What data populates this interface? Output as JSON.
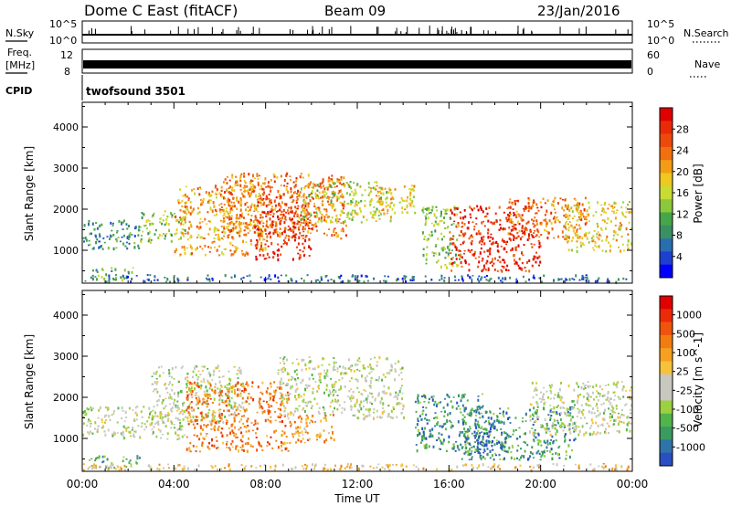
{
  "header": {
    "site": "Dome C East (fitACF)",
    "beam": "Beam 09",
    "date": "23/Jan/2016"
  },
  "status_panels": {
    "nsky_label": "N.Sky",
    "nsky_ticks": [
      "10^5",
      "10^0"
    ],
    "nsearch_label": "N.Search",
    "nsearch_ticks": [
      "10^5",
      "10^0"
    ],
    "freq_label_1": "Freq.",
    "freq_label_2": "[MHz]",
    "freq_ticks": [
      "12",
      "8"
    ],
    "nave_label": "Nave",
    "nave_ticks": [
      "60",
      "0"
    ],
    "cpid_label": "CPID",
    "cpid_value": "twofsound 3501"
  },
  "chart_data": [
    {
      "type": "heatmap",
      "name": "power-panel",
      "ylabel": "Slant Range [km]",
      "yticks": [
        "1000",
        "2000",
        "3000",
        "4000"
      ],
      "ylim": [
        200,
        4600
      ],
      "xlim": [
        0,
        24
      ],
      "colorbar": {
        "label": "Power [dB]",
        "ticks": [
          "4",
          "8",
          "12",
          "16",
          "20",
          "24",
          "28"
        ],
        "colors": [
          "#0000ff",
          "#1f3fd0",
          "#2a6db0",
          "#3a9060",
          "#46a64a",
          "#8cc83c",
          "#c8dc34",
          "#f0c820",
          "#f29d15",
          "#f07010",
          "#ec4a0c",
          "#e82a08",
          "#e00000"
        ]
      },
      "regions": [
        {
          "t0": 0.0,
          "t1": 2.5,
          "r0": 1050,
          "r1": 1750,
          "level": 3
        },
        {
          "t0": 0.3,
          "t1": 2.2,
          "r0": 300,
          "r1": 600,
          "level": 4
        },
        {
          "t0": 2.5,
          "t1": 4.5,
          "r0": 1200,
          "r1": 2000,
          "level": 5
        },
        {
          "t0": 4.0,
          "t1": 8.0,
          "r0": 900,
          "r1": 2600,
          "level": 8
        },
        {
          "t0": 6.0,
          "t1": 11.5,
          "r0": 1300,
          "r1": 2900,
          "level": 9
        },
        {
          "t0": 7.5,
          "t1": 10.0,
          "r0": 800,
          "r1": 2400,
          "level": 11
        },
        {
          "t0": 9.5,
          "t1": 13.5,
          "r0": 1700,
          "r1": 2700,
          "level": 6
        },
        {
          "t0": 12.5,
          "t1": 14.5,
          "r0": 1900,
          "r1": 2600,
          "level": 7
        },
        {
          "t0": 14.8,
          "t1": 16.5,
          "r0": 600,
          "r1": 2100,
          "level": 5
        },
        {
          "t0": 16.0,
          "t1": 20.0,
          "r0": 500,
          "r1": 2100,
          "level": 11
        },
        {
          "t0": 18.5,
          "t1": 22.0,
          "r0": 1300,
          "r1": 2300,
          "level": 9
        },
        {
          "t0": 21.0,
          "t1": 24.0,
          "r0": 1000,
          "r1": 2200,
          "level": 7
        },
        {
          "t0": 0.0,
          "t1": 24.0,
          "r0": 250,
          "r1": 420,
          "level": 2
        }
      ]
    },
    {
      "type": "heatmap",
      "name": "velocity-panel",
      "ylabel": "Slant Range [km]",
      "yticks": [
        "1000",
        "2000",
        "3000",
        "4000"
      ],
      "ylim": [
        200,
        4600
      ],
      "xlabel": "Time UT",
      "xticks": [
        "00:00",
        "04:00",
        "08:00",
        "12:00",
        "16:00",
        "20:00",
        "00:00"
      ],
      "xlim": [
        0,
        24
      ],
      "colorbar": {
        "label": "Velocity [m s^-1]",
        "ticks": [
          "1000",
          "500",
          "100",
          "25",
          "-25",
          "-100",
          "-500",
          "-1000"
        ],
        "colors": [
          "#2a4fc0",
          "#2f74a8",
          "#3a9a60",
          "#52b44a",
          "#9cd040",
          "#c8c8c0",
          "#c8c8c0",
          "#f6c23c",
          "#f5a020",
          "#f27c10",
          "#ef540c",
          "#ea2a08",
          "#e00000"
        ]
      },
      "regions": [
        {
          "t0": 0.0,
          "t1": 4.5,
          "r0": 1000,
          "r1": 1800,
          "level": 5
        },
        {
          "t0": 0.2,
          "t1": 2.5,
          "r0": 300,
          "r1": 600,
          "level": 3
        },
        {
          "t0": 3.0,
          "t1": 7.0,
          "r0": 1400,
          "r1": 2800,
          "level": 5
        },
        {
          "t0": 4.5,
          "t1": 9.0,
          "r0": 700,
          "r1": 2400,
          "level": 9
        },
        {
          "t0": 8.5,
          "t1": 14.0,
          "r0": 1500,
          "r1": 3000,
          "level": 5
        },
        {
          "t0": 9.0,
          "t1": 11.0,
          "r0": 900,
          "r1": 1600,
          "level": 8
        },
        {
          "t0": 14.5,
          "t1": 17.5,
          "r0": 700,
          "r1": 2100,
          "level": 2
        },
        {
          "t0": 16.5,
          "t1": 21.5,
          "r0": 500,
          "r1": 1800,
          "level": 2
        },
        {
          "t0": 17.0,
          "t1": 18.5,
          "r0": 600,
          "r1": 1200,
          "level": 0
        },
        {
          "t0": 19.5,
          "t1": 24.0,
          "r0": 1100,
          "r1": 2400,
          "level": 5
        },
        {
          "t0": 0.0,
          "t1": 24.0,
          "r0": 250,
          "r1": 400,
          "level": 7
        }
      ]
    }
  ]
}
